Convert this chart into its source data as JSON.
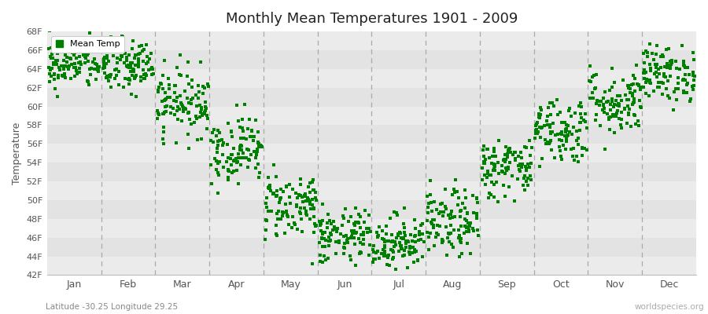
{
  "title": "Monthly Mean Temperatures 1901 - 2009",
  "ylabel": "Temperature",
  "xlabel_coords": "Latitude -30.25 Longitude 29.25",
  "watermark": "worldspecies.org",
  "legend_label": "Mean Temp",
  "yticks": [
    "42F",
    "44F",
    "46F",
    "48F",
    "50F",
    "52F",
    "54F",
    "56F",
    "58F",
    "60F",
    "62F",
    "64F",
    "66F",
    "68F"
  ],
  "ytick_values": [
    42,
    44,
    46,
    48,
    50,
    52,
    54,
    56,
    58,
    60,
    62,
    64,
    66,
    68
  ],
  "months": [
    "Jan",
    "Feb",
    "Mar",
    "Apr",
    "May",
    "Jun",
    "Jul",
    "Aug",
    "Sep",
    "Oct",
    "Nov",
    "Dec"
  ],
  "month_positions": [
    0.5,
    1.5,
    2.5,
    3.5,
    4.5,
    5.5,
    6.5,
    7.5,
    8.5,
    9.5,
    10.5,
    11.5
  ],
  "dashed_lines": [
    1,
    2,
    3,
    4,
    5,
    6,
    7,
    8,
    9,
    10,
    11
  ],
  "dot_color": "#008000",
  "background_color": "#ffffff",
  "band_colors": [
    "#ebebeb",
    "#e3e3e3"
  ],
  "ylim": [
    42,
    68
  ],
  "xlim": [
    0,
    12
  ],
  "seed": 42,
  "n_years": 109,
  "monthly_means": [
    64.5,
    64.2,
    60.5,
    55.5,
    49.5,
    46.0,
    45.5,
    47.5,
    53.5,
    57.5,
    60.5,
    63.5
  ],
  "monthly_stds": [
    1.3,
    1.5,
    1.8,
    1.8,
    1.8,
    1.5,
    1.5,
    1.8,
    1.6,
    1.8,
    1.8,
    1.5
  ],
  "dot_size": 7,
  "figsize": [
    9.0,
    4.0
  ],
  "dpi": 100
}
